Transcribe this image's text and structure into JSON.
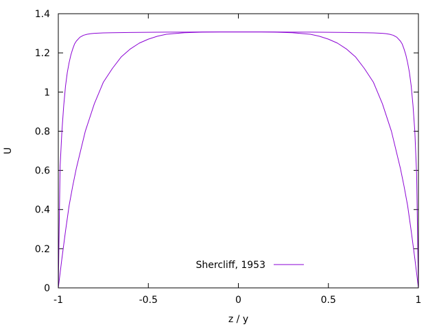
{
  "chart_data": {
    "type": "line",
    "title": "",
    "xlabel": "z / y",
    "ylabel": "U",
    "xlim": [
      -1,
      1
    ],
    "ylim": [
      0,
      1.4
    ],
    "xticks": [
      -1,
      -0.5,
      0,
      0.5,
      1
    ],
    "xtick_labels": [
      "-1",
      "-0.5",
      "0",
      "0.5",
      "1"
    ],
    "yticks": [
      0,
      0.2,
      0.4,
      0.6,
      0.8,
      1,
      1.2,
      1.4
    ],
    "ytick_labels": [
      "0",
      "0.2",
      "0.4",
      "0.6",
      "0.8",
      "1",
      "1.2",
      "1.4"
    ],
    "grid": false,
    "legend_position": "bottom-center",
    "legend": [
      {
        "label": "Shercliff, 1953",
        "color": "#8a00d4"
      }
    ],
    "series": [
      {
        "color": "#8a00d4",
        "x": [
          -1,
          -0.99,
          -0.98,
          -0.97,
          -0.96,
          -0.95,
          -0.94,
          -0.93,
          -0.92,
          -0.91,
          -0.9,
          -0.88,
          -0.86,
          -0.84,
          -0.82,
          -0.8,
          -0.75,
          -0.7,
          -0.6,
          -0.5,
          -0.4,
          -0.3,
          -0.2,
          -0.1,
          0,
          0.1,
          0.2,
          0.3,
          0.4,
          0.5,
          0.6,
          0.7,
          0.75,
          0.8,
          0.82,
          0.84,
          0.86,
          0.88,
          0.9,
          0.91,
          0.92,
          0.93,
          0.94,
          0.95,
          0.96,
          0.97,
          0.98,
          0.99,
          1
        ],
        "values": [
          0,
          0.62,
          0.8,
          0.93,
          1.03,
          1.1,
          1.15,
          1.19,
          1.22,
          1.245,
          1.26,
          1.28,
          1.29,
          1.295,
          1.298,
          1.3,
          1.302,
          1.303,
          1.304,
          1.305,
          1.306,
          1.306,
          1.307,
          1.307,
          1.307,
          1.307,
          1.307,
          1.306,
          1.306,
          1.305,
          1.304,
          1.303,
          1.302,
          1.3,
          1.298,
          1.295,
          1.29,
          1.28,
          1.26,
          1.245,
          1.22,
          1.19,
          1.15,
          1.1,
          1.03,
          0.93,
          0.8,
          0.58,
          0
        ]
      },
      {
        "color": "#8a00d4",
        "x": [
          -1,
          -0.98,
          -0.96,
          -0.94,
          -0.92,
          -0.9,
          -0.85,
          -0.8,
          -0.75,
          -0.7,
          -0.65,
          -0.6,
          -0.55,
          -0.5,
          -0.45,
          -0.4,
          -0.3,
          -0.2,
          -0.1,
          0,
          0.1,
          0.2,
          0.3,
          0.4,
          0.45,
          0.5,
          0.55,
          0.6,
          0.65,
          0.7,
          0.75,
          0.8,
          0.85,
          0.9,
          0.92,
          0.94,
          0.96,
          0.98,
          1
        ],
        "values": [
          0,
          0.15,
          0.29,
          0.42,
          0.52,
          0.61,
          0.8,
          0.94,
          1.05,
          1.12,
          1.18,
          1.22,
          1.25,
          1.27,
          1.285,
          1.295,
          1.303,
          1.306,
          1.307,
          1.307,
          1.307,
          1.306,
          1.303,
          1.295,
          1.285,
          1.27,
          1.25,
          1.22,
          1.18,
          1.12,
          1.05,
          0.94,
          0.8,
          0.61,
          0.52,
          0.42,
          0.29,
          0.15,
          0
        ]
      }
    ]
  }
}
